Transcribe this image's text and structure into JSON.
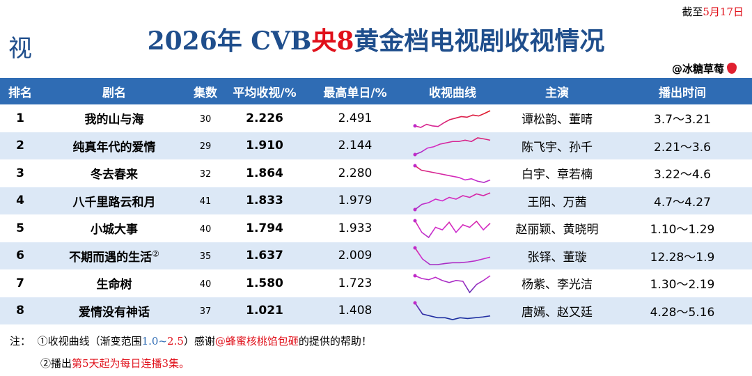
{
  "header": {
    "date_prefix": "截至",
    "date": "5月17日",
    "logo": "视",
    "title_a": "2026年 CVB",
    "title_b": "央8",
    "title_c": "黄金档电视剧收视情况",
    "author": "@冰糖草莓"
  },
  "table": {
    "columns": [
      "排名",
      "剧名",
      "集数",
      "平均收视/%",
      "最高单日/%",
      "收视曲线",
      "主演",
      "播出时间"
    ],
    "rows": [
      {
        "rank": "1",
        "title": "我的山与海",
        "episodes": "30",
        "avg": "2.226",
        "peak": "2.491",
        "cast": "谭松韵、董晴",
        "airing": "3.7～3.21",
        "curve": [
          2.0,
          1.95,
          2.05,
          2.0,
          1.98,
          2.1,
          2.2,
          2.25,
          2.3,
          2.28,
          2.35,
          2.32,
          2.4,
          2.49
        ]
      },
      {
        "rank": "2",
        "title": "纯真年代的爱情",
        "episodes": "29",
        "avg": "1.910",
        "peak": "2.144",
        "cast": "陈飞宇、孙千",
        "airing": "2.21～3.6",
        "curve": [
          1.5,
          1.6,
          1.75,
          1.8,
          1.9,
          1.95,
          2.0,
          2.0,
          2.05,
          2.0,
          2.14,
          2.1,
          2.05
        ]
      },
      {
        "rank": "3",
        "title": "冬去春来",
        "episodes": "32",
        "avg": "1.864",
        "peak": "2.280",
        "cast": "白宇、章若楠",
        "airing": "3.22～4.6",
        "curve": [
          2.28,
          2.1,
          2.05,
          2.0,
          1.95,
          1.9,
          1.85,
          1.8,
          1.7,
          1.75,
          1.65,
          1.6,
          1.7
        ]
      },
      {
        "rank": "4",
        "title": "八千里路云和月",
        "episodes": "41",
        "avg": "1.833",
        "peak": "1.979",
        "cast": "王阳、万茜",
        "airing": "4.7～4.27",
        "curve": [
          1.5,
          1.65,
          1.7,
          1.8,
          1.75,
          1.85,
          1.8,
          1.9,
          1.85,
          1.95,
          1.9,
          1.98
        ]
      },
      {
        "rank": "5",
        "title": "小城大事",
        "episodes": "40",
        "avg": "1.794",
        "peak": "1.933",
        "cast": "赵丽颖、黄晓明",
        "airing": "1.10～1.29",
        "curve": [
          1.93,
          1.7,
          1.6,
          1.8,
          1.75,
          1.9,
          1.7,
          1.85,
          1.8,
          1.92,
          1.75,
          1.88
        ]
      },
      {
        "rank": "6",
        "title": "不期而遇的生活",
        "title_mark": "②",
        "episodes": "35",
        "avg": "1.637",
        "peak": "2.009",
        "cast": "张铎、董璇",
        "airing": "12.28～1.9",
        "curve": [
          2.0,
          1.7,
          1.55,
          1.55,
          1.58,
          1.6,
          1.6,
          1.62,
          1.65,
          1.7,
          1.75
        ]
      },
      {
        "rank": "7",
        "title": "生命树",
        "episodes": "40",
        "avg": "1.580",
        "peak": "1.723",
        "cast": "杨紫、李光洁",
        "airing": "1.30～2.19",
        "curve": [
          1.72,
          1.65,
          1.62,
          1.68,
          1.6,
          1.55,
          1.6,
          1.58,
          1.3,
          1.5,
          1.6,
          1.72
        ]
      },
      {
        "rank": "8",
        "title": "爱情没有神话",
        "episodes": "37",
        "avg": "1.021",
        "peak": "1.408",
        "cast": "唐嫣、赵又廷",
        "airing": "4.28～5.16",
        "curve": [
          1.4,
          1.1,
          1.05,
          1.0,
          1.0,
          0.95,
          1.0,
          0.98,
          1.0,
          1.02,
          1.05
        ]
      }
    ]
  },
  "notes": {
    "label": "注：",
    "line1_a": "①收视曲线（渐变范围",
    "range_low": "1.0",
    "range_sep": "~",
    "range_high": "2.5",
    "line1_b": "）感谢",
    "credit": "@蜂蜜核桃馅包砸",
    "line1_c": "的提供的帮助！",
    "line2_a": "②播出",
    "line2_b": "第5天起为每日连播3集。"
  }
}
